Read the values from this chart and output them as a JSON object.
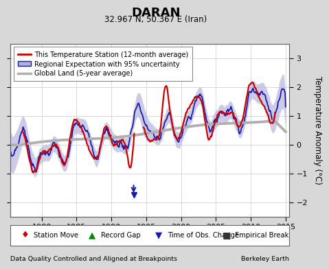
{
  "title": "DARAN",
  "subtitle": "32.967 N, 50.367 E (Iran)",
  "ylabel": "Temperature Anomaly (°C)",
  "xlabel_left": "Data Quality Controlled and Aligned at Breakpoints",
  "xlabel_right": "Berkeley Earth",
  "ylim": [
    -2.5,
    3.5
  ],
  "xlim": [
    1975.5,
    2015.5
  ],
  "xticks": [
    1980,
    1985,
    1990,
    1995,
    2000,
    2005,
    2010,
    2015
  ],
  "yticks": [
    -2,
    -1,
    0,
    1,
    2,
    3
  ],
  "bg_color": "#d8d8d8",
  "plot_bg_color": "#ffffff",
  "red_color": "#cc0000",
  "blue_color": "#1a1aaa",
  "blue_fill_color": "#b0b0dd",
  "gray_color": "#b0b0b0",
  "legend_items": [
    "This Temperature Station (12-month average)",
    "Regional Expectation with 95% uncertainty",
    "Global Land (5-year average)"
  ]
}
